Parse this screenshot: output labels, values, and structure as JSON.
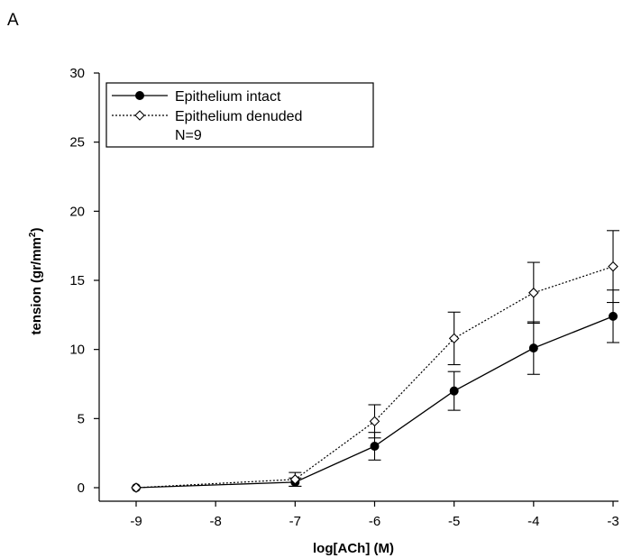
{
  "panel_label": "A",
  "chart_data": {
    "type": "line",
    "title": "",
    "xlabel": "log[ACh] (M)",
    "ylabel": "tension (gr/mm",
    "ylabel_superscript": "2",
    "ylabel_close": ")",
    "xlim": [
      -9,
      -3
    ],
    "ylim": [
      0,
      30
    ],
    "xticks": [
      "-9",
      "-8",
      "-7",
      "-6",
      "-5",
      "-4",
      "-3"
    ],
    "yticks": [
      "0",
      "5",
      "10",
      "15",
      "20",
      "25",
      "30"
    ],
    "legend_position": "top-left",
    "legend_note": "N=9",
    "series": [
      {
        "name": "Epithelium intact",
        "marker": "filled-circle",
        "line_style": "solid",
        "points": [
          {
            "x": -9,
            "y": 0.0,
            "err": 0.0
          },
          {
            "x": -7,
            "y": 0.4,
            "err": 0.3
          },
          {
            "x": -6,
            "y": 3.0,
            "err": 1.0
          },
          {
            "x": -5,
            "y": 7.0,
            "err": 1.4
          },
          {
            "x": -4,
            "y": 10.1,
            "err": 1.9
          },
          {
            "x": -3,
            "y": 12.4,
            "err": 1.9
          }
        ]
      },
      {
        "name": "Epithelium denuded",
        "marker": "open-diamond",
        "line_style": "dotted",
        "points": [
          {
            "x": -9,
            "y": 0.0,
            "err": 0.0
          },
          {
            "x": -7,
            "y": 0.6,
            "err": 0.5
          },
          {
            "x": -6,
            "y": 4.8,
            "err": 1.2
          },
          {
            "x": -5,
            "y": 10.8,
            "err": 1.9
          },
          {
            "x": -4,
            "y": 14.1,
            "err": 2.2
          },
          {
            "x": -3,
            "y": 16.0,
            "err": 2.6
          }
        ]
      }
    ]
  }
}
